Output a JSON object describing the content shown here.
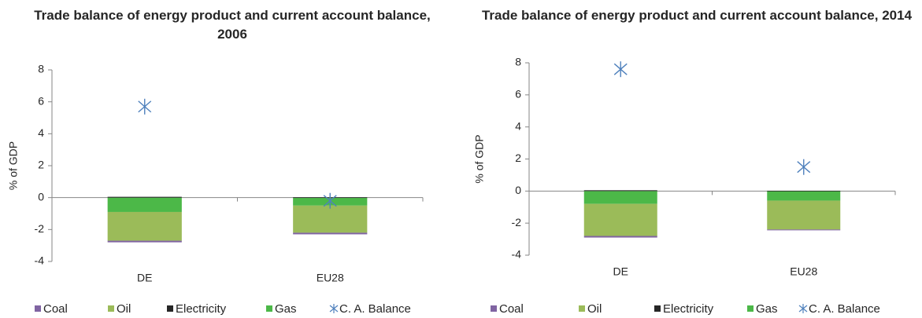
{
  "chart_data": [
    {
      "type": "bar",
      "stacked": true,
      "title": "Trade balance of energy product and current  account balance, 2006",
      "ylabel": "% of GDP",
      "categories": [
        "DE",
        "EU28"
      ],
      "ylim": [
        -4,
        8
      ],
      "yticks": [
        -4,
        -2,
        0,
        2,
        4,
        6,
        8
      ],
      "series": [
        {
          "name": "Coal",
          "type": "bar",
          "color": "#8064a2",
          "values": [
            -0.1,
            -0.1
          ]
        },
        {
          "name": "Oil",
          "type": "bar",
          "color": "#9bbb59",
          "values": [
            -1.8,
            -1.7
          ]
        },
        {
          "name": "Electricity",
          "type": "bar",
          "color": "#262626",
          "values": [
            0.05,
            0.02
          ]
        },
        {
          "name": "Gas",
          "type": "bar",
          "color": "#4cb848",
          "values": [
            -0.9,
            -0.5
          ]
        },
        {
          "name": "C. A. Balance",
          "type": "scatter",
          "color": "#4f81bd",
          "values": [
            5.7,
            -0.2
          ]
        }
      ]
    },
    {
      "type": "bar",
      "stacked": true,
      "title": "Trade balance of energy product and current account balance, 2014",
      "ylabel": "% of GDP",
      "categories": [
        "DE",
        "EU28"
      ],
      "ylim": [
        -4,
        8
      ],
      "yticks": [
        -4,
        -2,
        0,
        2,
        4,
        6,
        8
      ],
      "series": [
        {
          "name": "Coal",
          "type": "bar",
          "color": "#8064a2",
          "values": [
            -0.1,
            -0.05
          ]
        },
        {
          "name": "Oil",
          "type": "bar",
          "color": "#9bbb59",
          "values": [
            -2.0,
            -1.8
          ]
        },
        {
          "name": "Electricity",
          "type": "bar",
          "color": "#262626",
          "values": [
            0.05,
            0.02
          ]
        },
        {
          "name": "Gas",
          "type": "bar",
          "color": "#4cb848",
          "values": [
            -0.8,
            -0.6
          ]
        },
        {
          "name": "C. A. Balance",
          "type": "scatter",
          "color": "#4f81bd",
          "values": [
            7.6,
            1.5
          ]
        }
      ]
    }
  ]
}
